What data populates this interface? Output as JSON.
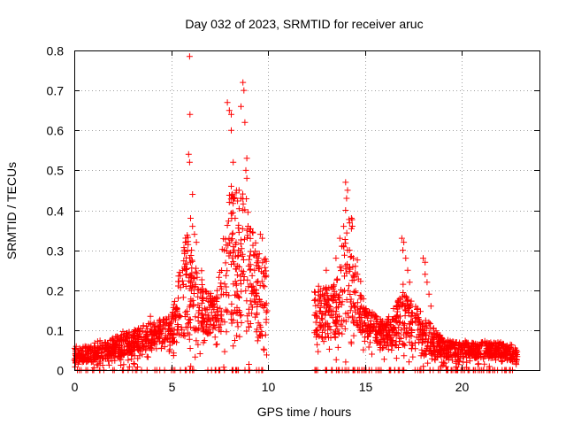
{
  "chart_data": {
    "type": "scatter",
    "title": "Day 032 of 2023, SRMTID for receiver aruc",
    "xlabel": "GPS time / hours",
    "ylabel": "SRMTID / TECUs",
    "xlim": [
      0,
      24
    ],
    "ylim": [
      0,
      0.8
    ],
    "x_ticks": [
      0,
      5,
      10,
      15,
      20
    ],
    "x_tick_labels": [
      "0",
      "5",
      "10",
      "15",
      "20"
    ],
    "y_ticks": [
      0,
      0.1,
      0.2,
      0.3,
      0.4,
      0.5,
      0.6,
      0.7,
      0.8
    ],
    "y_tick_labels": [
      "0",
      "0.1",
      "0.2",
      "0.3",
      "0.4",
      "0.5",
      "0.6",
      "0.7",
      "0.8"
    ],
    "grid": true,
    "marker": "+",
    "series_color": "#ff0000",
    "envelope": {
      "note": "approximate density of points: [hour, typical_low, typical_high]",
      "points": [
        [
          0.0,
          0.02,
          0.06
        ],
        [
          1.0,
          0.02,
          0.06
        ],
        [
          2.0,
          0.03,
          0.08
        ],
        [
          3.0,
          0.04,
          0.1
        ],
        [
          4.0,
          0.05,
          0.12
        ],
        [
          5.0,
          0.06,
          0.14
        ],
        [
          5.8,
          0.08,
          0.35
        ],
        [
          6.5,
          0.1,
          0.22
        ],
        [
          7.3,
          0.08,
          0.18
        ],
        [
          8.0,
          0.1,
          0.45
        ],
        [
          8.8,
          0.1,
          0.45
        ],
        [
          9.5,
          0.08,
          0.3
        ],
        [
          12.5,
          0.08,
          0.2
        ],
        [
          13.5,
          0.08,
          0.22
        ],
        [
          14.2,
          0.12,
          0.4
        ],
        [
          15.0,
          0.08,
          0.16
        ],
        [
          16.0,
          0.05,
          0.12
        ],
        [
          17.0,
          0.06,
          0.2
        ],
        [
          18.0,
          0.04,
          0.14
        ],
        [
          19.0,
          0.03,
          0.08
        ],
        [
          20.0,
          0.03,
          0.07
        ],
        [
          21.0,
          0.03,
          0.07
        ],
        [
          22.0,
          0.03,
          0.07
        ],
        [
          22.8,
          0.02,
          0.05
        ]
      ]
    },
    "highlights": [
      [
        5.95,
        0.785
      ],
      [
        5.97,
        0.64
      ],
      [
        5.9,
        0.54
      ],
      [
        5.95,
        0.52
      ],
      [
        6.1,
        0.44
      ],
      [
        7.9,
        0.67
      ],
      [
        8.0,
        0.65
      ],
      [
        8.1,
        0.64
      ],
      [
        8.1,
        0.6
      ],
      [
        8.7,
        0.72
      ],
      [
        8.75,
        0.7
      ],
      [
        8.8,
        0.62
      ],
      [
        8.6,
        0.66
      ],
      [
        8.9,
        0.53
      ],
      [
        8.85,
        0.5
      ],
      [
        8.9,
        0.48
      ],
      [
        8.2,
        0.52
      ],
      [
        8.1,
        0.46
      ],
      [
        8.0,
        0.42
      ],
      [
        8.5,
        0.45
      ],
      [
        8.6,
        0.43
      ],
      [
        8.3,
        0.38
      ],
      [
        8.15,
        0.34
      ],
      [
        8.25,
        0.3
      ],
      [
        8.7,
        0.4
      ],
      [
        8.9,
        0.35
      ],
      [
        9.6,
        0.34
      ],
      [
        9.7,
        0.33
      ],
      [
        9.5,
        0.28
      ],
      [
        9.3,
        0.25
      ],
      [
        9.4,
        0.22
      ],
      [
        6.0,
        0.38
      ],
      [
        6.1,
        0.36
      ],
      [
        6.2,
        0.34
      ],
      [
        6.3,
        0.32
      ],
      [
        6.05,
        0.3
      ],
      [
        6.0,
        0.27
      ],
      [
        14.0,
        0.47
      ],
      [
        14.1,
        0.45
      ],
      [
        14.05,
        0.43
      ],
      [
        14.0,
        0.4
      ],
      [
        13.9,
        0.36
      ],
      [
        14.3,
        0.38
      ],
      [
        13.7,
        0.33
      ],
      [
        13.8,
        0.31
      ],
      [
        14.2,
        0.3
      ],
      [
        14.4,
        0.28
      ],
      [
        14.5,
        0.26
      ],
      [
        14.6,
        0.24
      ],
      [
        13.5,
        0.28
      ],
      [
        12.6,
        0.21
      ],
      [
        12.7,
        0.2
      ],
      [
        12.8,
        0.19
      ],
      [
        13.0,
        0.25
      ],
      [
        16.9,
        0.33
      ],
      [
        17.0,
        0.32
      ],
      [
        16.95,
        0.3
      ],
      [
        17.1,
        0.28
      ],
      [
        17.2,
        0.25
      ],
      [
        17.3,
        0.22
      ],
      [
        18.0,
        0.28
      ],
      [
        18.1,
        0.27
      ],
      [
        18.1,
        0.24
      ],
      [
        18.2,
        0.22
      ],
      [
        18.3,
        0.19
      ],
      [
        18.4,
        0.16
      ]
    ],
    "gaps": [
      [
        9.95,
        12.35
      ]
    ],
    "time_range": [
      0.0,
      22.85
    ]
  }
}
